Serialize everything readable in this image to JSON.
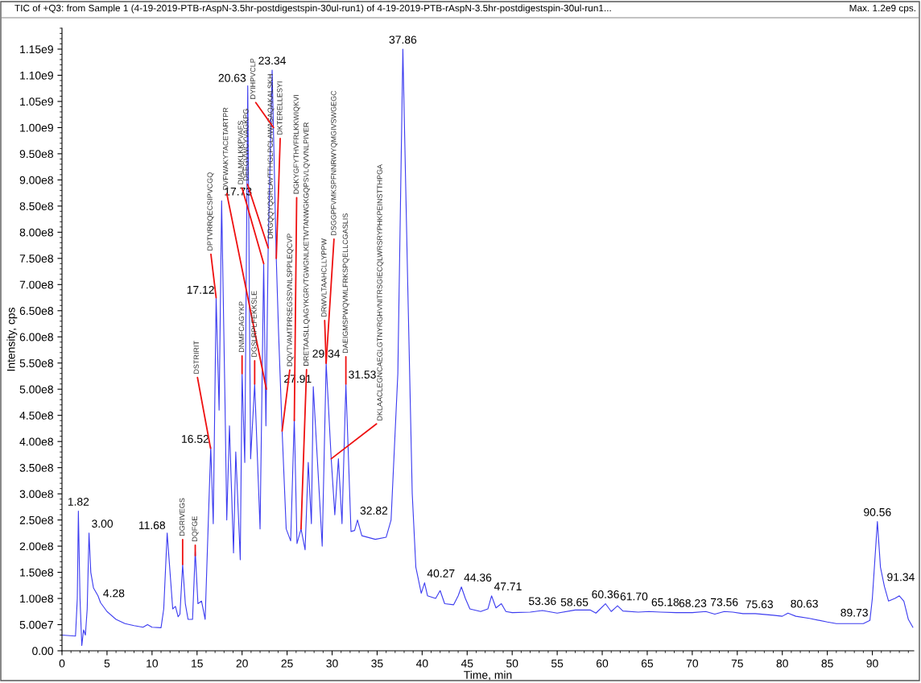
{
  "chart_data": {
    "type": "line",
    "title": "TIC of +Q3: from Sample 1 (4-19-2019-PTB-rAspN-3.5hr-postdigestspin-30ul-run1) of 4-19-2019-PTB-rAspN-3.5hr-postdigestspin-30ul-run1...",
    "xlabel": "Time, min",
    "ylabel": "Intensity, cps",
    "x": [
      0,
      1.5,
      1.7,
      1.82,
      2.0,
      2.2,
      2.4,
      2.6,
      2.8,
      3.0,
      3.2,
      3.5,
      4.0,
      4.28,
      5,
      6,
      7,
      8,
      9,
      9.5,
      10,
      11,
      11.3,
      11.68,
      12.0,
      12.3,
      12.6,
      12.9,
      13.1,
      13.4,
      13.7,
      14.0,
      14.5,
      14.8,
      15.1,
      15.5,
      15.9,
      16.2,
      16.52,
      16.8,
      17.12,
      17.45,
      17.73,
      18.1,
      18.3,
      18.6,
      19.05,
      19.3,
      19.8,
      20.0,
      20.3,
      20.63,
      20.95,
      21.4,
      22.0,
      22.4,
      22.65,
      22.9,
      23.34,
      23.8,
      24.05,
      24.45,
      24.9,
      25.4,
      25.8,
      26.1,
      26.55,
      27.0,
      27.35,
      27.7,
      27.91,
      28.9,
      29.34,
      29.9,
      30.3,
      30.7,
      31.1,
      31.53,
      32.1,
      32.5,
      32.82,
      33.3,
      34.8,
      36.0,
      36.55,
      37.3,
      37.86,
      38.4,
      38.9,
      39.3,
      39.9,
      40.27,
      40.6,
      41.5,
      42.0,
      42.5,
      43.5,
      44.0,
      44.36,
      44.8,
      45.3,
      46.5,
      47.3,
      47.71,
      48.2,
      48.8,
      49.3,
      50,
      52,
      53.36,
      55,
      57,
      58.65,
      59.3,
      60.36,
      61.0,
      61.7,
      62.3,
      64,
      65.18,
      66.5,
      68.23,
      70,
      71.5,
      72.5,
      73.56,
      74.5,
      75.63,
      77,
      79,
      80.0,
      80.63,
      81.5,
      83,
      85,
      86,
      87,
      89,
      89.73,
      90.0,
      90.56,
      90.9,
      91.34,
      91.8,
      92.5,
      93.0,
      93.5,
      94.0,
      94.5
    ],
    "series": [
      {
        "color": "#3c3cf0",
        "values": [
          30000000.0,
          28000000.0,
          100000000.0,
          267000000.0,
          100000000.0,
          10000000.0,
          40000000.0,
          30000000.0,
          80000000.0,
          225000000.0,
          150000000.0,
          120000000.0,
          105000000.0,
          92000000.0,
          75000000.0,
          60000000.0,
          52000000.0,
          48000000.0,
          45000000.0,
          50000000.0,
          45000000.0,
          44000000.0,
          80000000.0,
          225000000.0,
          150000000.0,
          80000000.0,
          85000000.0,
          65000000.0,
          70000000.0,
          165000000.0,
          90000000.0,
          60000000.0,
          60000000.0,
          190000000.0,
          90000000.0,
          95000000.0,
          60000000.0,
          220000000.0,
          390000000.0,
          243000000.0,
          675000000.0,
          460000000.0,
          860000000.0,
          480000000.0,
          250000000.0,
          430000000.0,
          187000000.0,
          380000000.0,
          174000000.0,
          530000000.0,
          360000000.0,
          1080000000.0,
          367000000.0,
          510000000.0,
          233000000.0,
          740000000.0,
          430000000.0,
          770000000.0,
          1110000000.0,
          750000000.0,
          610000000.0,
          420000000.0,
          233000000.0,
          210000000.0,
          444000000.0,
          205000000.0,
          233000000.0,
          193000000.0,
          360000000.0,
          243000000.0,
          505000000.0,
          200000000.0,
          550000000.0,
          367000000.0,
          260000000.0,
          367000000.0,
          243000000.0,
          510000000.0,
          228000000.0,
          230000000.0,
          250000000.0,
          220000000.0,
          213000000.0,
          217000000.0,
          250000000.0,
          530000000.0,
          1150000000.0,
          700000000.0,
          300000000.0,
          160000000.0,
          110000000.0,
          130000000.0,
          105000000.0,
          100000000.0,
          115000000.0,
          90000000.0,
          88000000.0,
          105000000.0,
          122000000.0,
          100000000.0,
          80000000.0,
          75000000.0,
          80000000.0,
          105000000.0,
          82000000.0,
          90000000.0,
          75000000.0,
          73000000.0,
          74000000.0,
          77000000.0,
          72000000.0,
          78000000.0,
          78000000.0,
          72000000.0,
          90000000.0,
          75000000.0,
          86000000.0,
          76000000.0,
          74000000.0,
          75000000.0,
          74000000.0,
          73000000.0,
          73000000.0,
          75000000.0,
          70000000.0,
          75000000.0,
          74000000.0,
          71000000.0,
          71000000.0,
          68000000.0,
          66000000.0,
          72000000.0,
          66000000.0,
          62000000.0,
          55000000.0,
          52000000.0,
          52000000.0,
          52000000.0,
          58000000.0,
          100000000.0,
          247000000.0,
          160000000.0,
          123000000.0,
          95000000.0,
          100000000.0,
          105000000.0,
          95000000.0,
          60000000.0,
          45000000.0
        ]
      }
    ],
    "xlim": [
      0,
      94.6
    ],
    "xticks": [
      0,
      5,
      10,
      15,
      20,
      25,
      30,
      35,
      40,
      45,
      50,
      55,
      60,
      65,
      70,
      75,
      80,
      85,
      90
    ],
    "ylim": [
      0,
      1190000000.0
    ],
    "yticks": [
      {
        "value": 0,
        "label": "0.00"
      },
      {
        "value": 50000000.0,
        "label": "5.00e7"
      },
      {
        "value": 100000000.0,
        "label": "1.00e8"
      },
      {
        "value": 150000000.0,
        "label": "1.50e8"
      },
      {
        "value": 200000000.0,
        "label": "2.00e8"
      },
      {
        "value": 250000000.0,
        "label": "2.50e8"
      },
      {
        "value": 300000000.0,
        "label": "3.00e8"
      },
      {
        "value": 350000000.0,
        "label": "3.50e8"
      },
      {
        "value": 400000000.0,
        "label": "4.00e8"
      },
      {
        "value": 450000000.0,
        "label": "4.50e8"
      },
      {
        "value": 500000000.0,
        "label": "5.00e8"
      },
      {
        "value": 550000000.0,
        "label": "5.50e8"
      },
      {
        "value": 600000000.0,
        "label": "6.00e8"
      },
      {
        "value": 650000000.0,
        "label": "6.50e8"
      },
      {
        "value": 700000000.0,
        "label": "7.00e8"
      },
      {
        "value": 750000000.0,
        "label": "7.50e8"
      },
      {
        "value": 800000000.0,
        "label": "8.00e8"
      },
      {
        "value": 850000000.0,
        "label": "8.50e8"
      },
      {
        "value": 900000000.0,
        "label": "9.00e8"
      },
      {
        "value": 950000000.0,
        "label": "9.50e8"
      },
      {
        "value": 1000000000.0,
        "label": "1.00e9"
      },
      {
        "value": 1050000000.0,
        "label": "1.05e9"
      },
      {
        "value": 1100000000.0,
        "label": "1.10e9"
      },
      {
        "value": 1150000000.0,
        "label": "1.15e9"
      }
    ],
    "grid": false,
    "legend": false,
    "annotations": [
      {
        "text": "1.82",
        "x": 1.82,
        "y": 267000000.0
      },
      {
        "text": "3.00",
        "x": 3.0,
        "y": 225000000.0
      },
      {
        "text": "4.28",
        "x": 4.28,
        "y": 92000000.0
      },
      {
        "text": "11.68",
        "x": 11.68,
        "y": 225000000.0
      },
      {
        "text": "16.52",
        "x": 16.52,
        "y": 390000000.0
      },
      {
        "text": "17.12",
        "x": 17.12,
        "y": 675000000.0
      },
      {
        "text": "17.73",
        "x": 17.73,
        "y": 860000000.0
      },
      {
        "text": "20.63",
        "x": 20.63,
        "y": 1080000000.0
      },
      {
        "text": "23.34",
        "x": 23.34,
        "y": 1110000000.0
      },
      {
        "text": "27.91",
        "x": 27.91,
        "y": 505000000.0
      },
      {
        "text": "29.34",
        "x": 29.34,
        "y": 550000000.0
      },
      {
        "text": "31.53",
        "x": 31.53,
        "y": 510000000.0
      },
      {
        "text": "32.82",
        "x": 32.82,
        "y": 250000000.0
      },
      {
        "text": "37.86",
        "x": 37.86,
        "y": 1150000000.0
      },
      {
        "text": "40.27",
        "x": 40.27,
        "y": 130000000.0
      },
      {
        "text": "44.36",
        "x": 44.36,
        "y": 122000000.0
      },
      {
        "text": "47.71",
        "x": 47.71,
        "y": 105000000.0
      },
      {
        "text": "53.36",
        "x": 53.36,
        "y": 77000000.0
      },
      {
        "text": "58.65",
        "x": 58.65,
        "y": 78000000.0
      },
      {
        "text": "60.36",
        "x": 60.36,
        "y": 90000000.0
      },
      {
        "text": "61.70",
        "x": 61.7,
        "y": 86000000.0
      },
      {
        "text": "65.18",
        "x": 65.18,
        "y": 75000000.0
      },
      {
        "text": "68.23",
        "x": 68.23,
        "y": 73000000.0
      },
      {
        "text": "73.56",
        "x": 73.56,
        "y": 75000000.0
      },
      {
        "text": "75.63",
        "x": 75.63,
        "y": 71000000.0
      },
      {
        "text": "80.63",
        "x": 80.63,
        "y": 72000000.0
      },
      {
        "text": "89.73",
        "x": 89.73,
        "y": 58000000.0
      },
      {
        "text": "90.56",
        "x": 90.56,
        "y": 247000000.0
      },
      {
        "text": "91.34",
        "x": 91.34,
        "y": 123000000.0
      },
      {
        "text": "DSTRIRIT",
        "x": 16.5,
        "y": 387000000.0
      },
      {
        "text": "DGRIVEGS",
        "x": 13.4,
        "y": 165000000.0
      },
      {
        "text": "DQFGE",
        "x": 14.8,
        "y": 182000000.0
      },
      {
        "text": "DPTVRRQECSIPVCGQ",
        "x": 17.12,
        "y": 675000000.0
      },
      {
        "text": "DVFWAKYTACETARTPR",
        "x": 22.7,
        "y": 500000000.0
      },
      {
        "text": "DIALMKLKKPVAFS",
        "x": 22.4,
        "y": 740000000.0
      },
      {
        "text": "DEEGVWCYVAGKPG",
        "x": 22.9,
        "y": 770000000.0
      },
      {
        "text": "DRGQQYQGRLAVTTHGLPCLAWASAQAKALSKH",
        "x": 23.2,
        "y": 1000000000.0
      },
      {
        "text": "DYIHPVCLP",
        "x": 23.5,
        "y": 1000000000.0
      },
      {
        "text": "DKTERELLESYI",
        "x": 23.8,
        "y": 750000000.0
      },
      {
        "text": "DQVTVAMTPRSEGSSVNLSPPLEQCVP",
        "x": 24.45,
        "y": 420000000.0
      },
      {
        "text": "DGKYGFYTHVFRLKKWIQKVI",
        "x": 25.8,
        "y": 440000000.0
      },
      {
        "text": "DRETAASLLQAGYKGRVTGWGNLKETWTANWGKGQPSVLQVVNLPIVER",
        "x": 26.55,
        "y": 233000000.0
      },
      {
        "text": "DRWVLTAAHCLLYPPW",
        "x": 29.34,
        "y": 550000000.0
      },
      {
        "text": "DSGGPFVMKSPFNNRWYQMGIVSWGEGC",
        "x": 29.34,
        "y": 550000000.0
      },
      {
        "text": "DAEIGMSPWQVMLFRKSPQELLCGASLIS",
        "x": 31.53,
        "y": 510000000.0
      },
      {
        "text": "DKLAACLEGNCAEGLGTNYRGHVNITRSGIECQLWRSRYPHKPEINSTTHPGA",
        "x": 29.9,
        "y": 367000000.0
      },
      {
        "text": "DNMFCAGYKP",
        "x": 20.0,
        "y": 530000000.0
      },
      {
        "text": "DGSLRPLFEKKSLE",
        "x": 21.4,
        "y": 510000000.0
      },
      "Max. 1.2e9 cps."
    ]
  }
}
